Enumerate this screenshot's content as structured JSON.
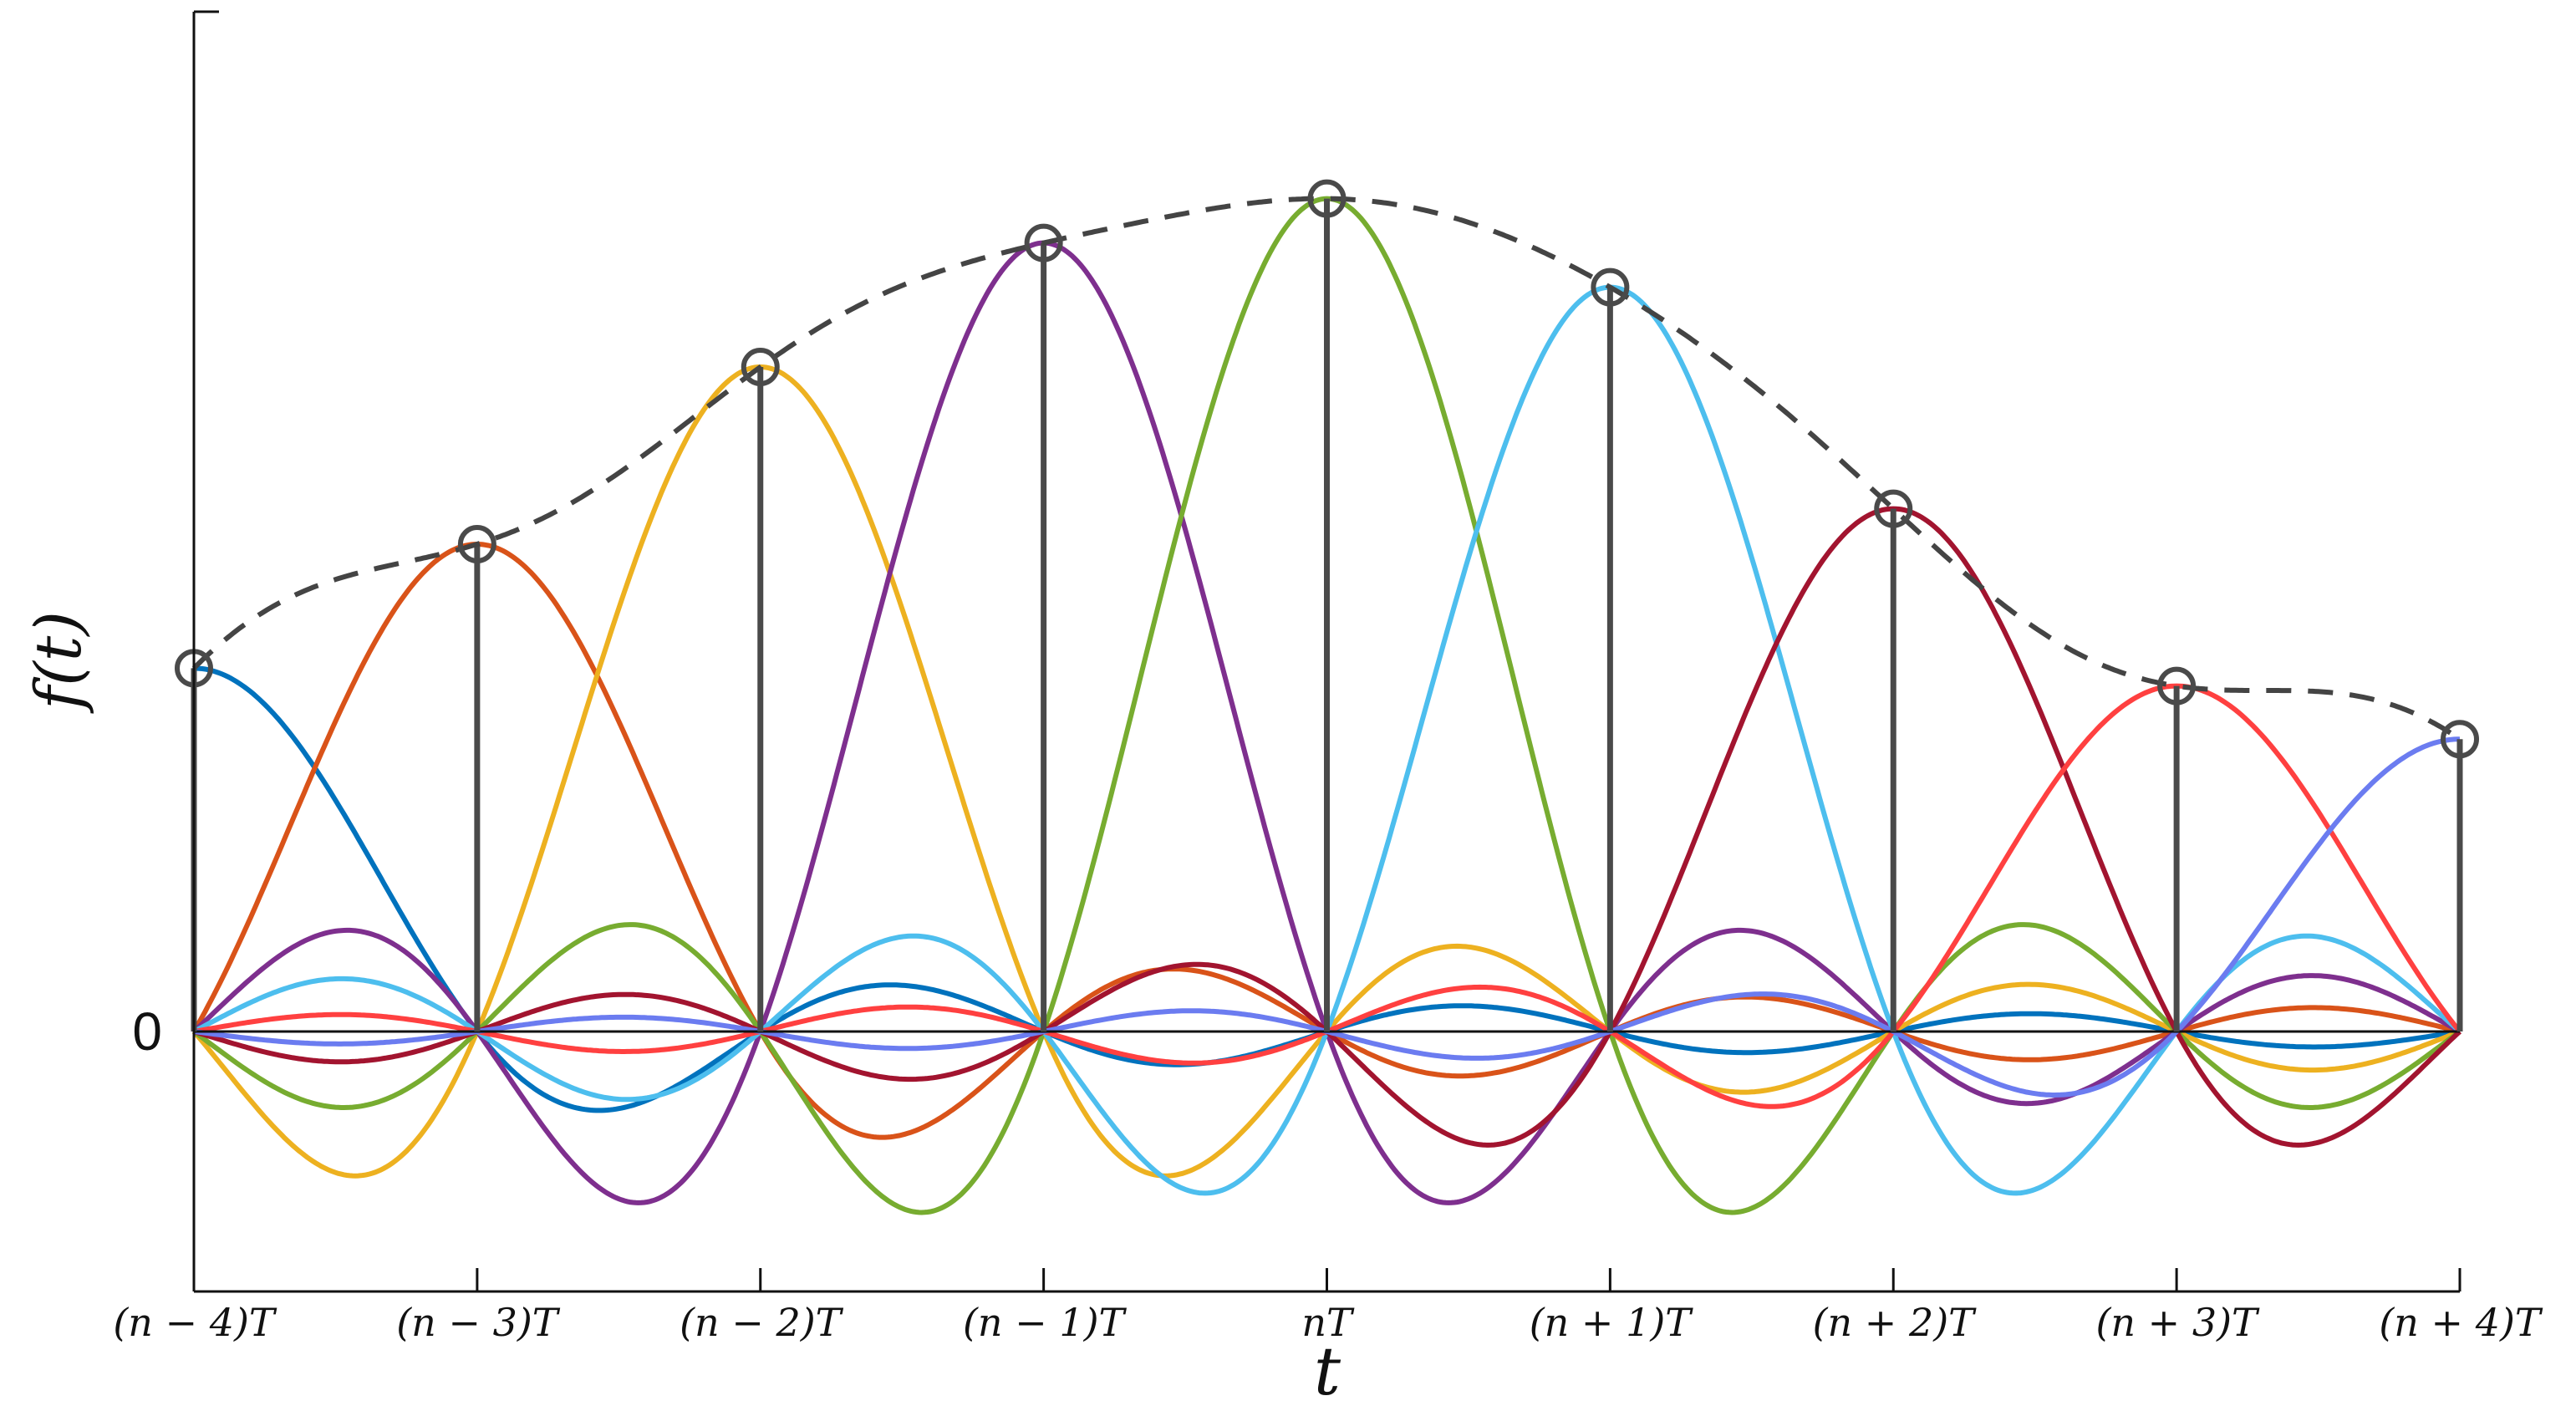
{
  "chart_data": {
    "type": "line",
    "title": "",
    "xlabel": "t",
    "ylabel": "f(t)",
    "x_tick_labels": [
      "(n − 4)T",
      "(n − 3)T",
      "(n − 2)T",
      "(n − 1)T",
      "nT",
      "(n + 1)T",
      "(n + 2)T",
      "(n + 3)T",
      "(n + 4)T"
    ],
    "y_tick_labels": [
      "0"
    ],
    "x": [
      -4,
      -3,
      -2,
      -1,
      0,
      1,
      2,
      3,
      4
    ],
    "samples": [
      0.41,
      0.55,
      0.75,
      0.89,
      0.94,
      0.84,
      0.59,
      0.39,
      0.33
    ],
    "reconstruction_style": "dashed",
    "xlim": [
      -4,
      4
    ],
    "ylim": [
      -0.24,
      1.0
    ],
    "grid": false,
    "legend": "none",
    "sinc_colors": [
      "#0072BD",
      "#D95319",
      "#EDB120",
      "#7E2F8E",
      "#77AC30",
      "#4DBEEE",
      "#A2142F",
      "#FF4040",
      "#6B7CF0"
    ],
    "stem_color": "#4a4a4a",
    "dashed_color": "#444444"
  }
}
